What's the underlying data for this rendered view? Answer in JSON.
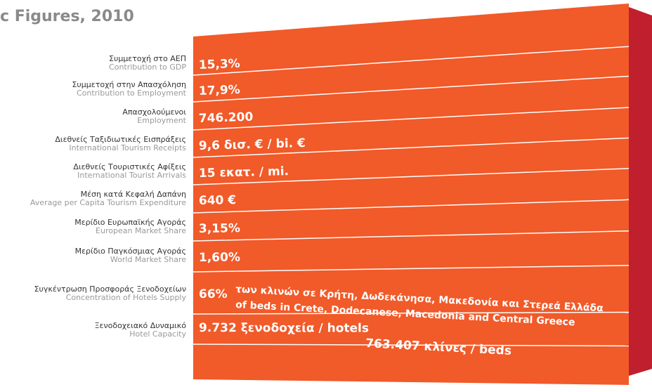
{
  "title": "c Figures, 2010",
  "rows": [
    {
      "el": "Συμμετοχή στο ΑΕΠ",
      "en": "Contribution to GDP",
      "value": "15,3%"
    },
    {
      "el": "Συμμετοχή στην Απασχόληση",
      "en": "Contribution to Employment",
      "value": "17,9%"
    },
    {
      "el": "Απασχολούμενοι",
      "en": "Employment",
      "value": "746.200"
    },
    {
      "el": "Διεθνείς Ταξιδιωτικές Εισπράξεις",
      "en": "International Tourism Receipts",
      "value": "9,6 δισ. € / bi. €"
    },
    {
      "el": "Διεθνείς Τουριστικές Αφίξεις",
      "en": "International Tourist Arrivals",
      "value": "15 εκατ. / mi."
    },
    {
      "el": "Μέση κατά Κεφαλή Δαπάνη",
      "en": "Average per Capita Tourism Expenditure",
      "value": "640 €"
    },
    {
      "el": "Μερίδιο Ευρωπαϊκής Αγοράς",
      "en": "European Market Share",
      "value": "3,15%"
    },
    {
      "el": "Μερίδιο Παγκόσμιας Αγοράς",
      "en": "World Market Share",
      "value": "1,60%"
    },
    {
      "el": "Συγκέντρωση Προσφοράς Ξενοδοχείων",
      "en": "Concentration of Hotels Supply",
      "value": "66%",
      "extra": [
        "των κλινών σε Κρήτη, Δωδεκάνησα, Μακεδονία και Στερεά Ελλάδα",
        "of beds in Crete, Dodecanese, Macedonia and Central Greece"
      ]
    },
    {
      "el": "Ξενοδοχειακό Δυναμικό",
      "en": "Hotel Capacity",
      "value": "9.732 ξενοδοχεία / hotels",
      "extra": [
        "763.407 κλίνες / beds"
      ]
    }
  ]
}
